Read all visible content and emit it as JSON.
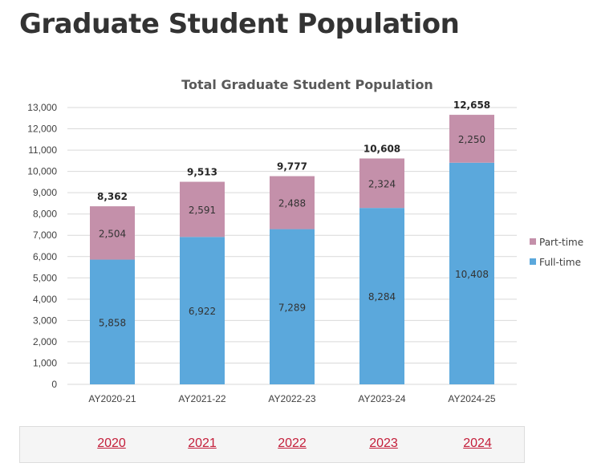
{
  "page": {
    "title": "Graduate Student Population"
  },
  "colors": {
    "full_time": "#5ba8dc",
    "part_time": "#c490aa",
    "grid": "#d9d9d9",
    "link": "#c41e3a"
  },
  "chart_data": {
    "type": "bar",
    "stacked": true,
    "title": "Total Graduate Student Population",
    "xlabel": "",
    "ylabel": "",
    "categories": [
      "AY2020-21",
      "AY2021-22",
      "AY2022-23",
      "AY2023-24",
      "AY2024-25"
    ],
    "series": [
      {
        "name": "Full-time",
        "values": [
          5858,
          6922,
          7289,
          8284,
          10408
        ]
      },
      {
        "name": "Part-time",
        "values": [
          2504,
          2591,
          2488,
          2324,
          2250
        ]
      }
    ],
    "totals": [
      8362,
      9513,
      9777,
      10608,
      12658
    ],
    "value_labels": {
      "full_time": [
        "5,858",
        "6,922",
        "7,289",
        "8,284",
        "10,408"
      ],
      "part_time": [
        "2,504",
        "2,591",
        "2,488",
        "2,324",
        "2,250"
      ],
      "totals": [
        "8,362",
        "9,513",
        "9,777",
        "10,608",
        "12,658"
      ]
    },
    "ylim": [
      0,
      13000
    ],
    "yticks": [
      0,
      1000,
      2000,
      3000,
      4000,
      5000,
      6000,
      7000,
      8000,
      9000,
      10000,
      11000,
      12000,
      13000
    ],
    "ytick_labels": [
      "0",
      "1,000",
      "2,000",
      "3,000",
      "4,000",
      "5,000",
      "6,000",
      "7,000",
      "8,000",
      "9,000",
      "10,000",
      "11,000",
      "12,000",
      "13,000"
    ],
    "grid": true,
    "legend": {
      "position": "right",
      "entries": [
        "Part-time",
        "Full-time"
      ]
    }
  },
  "year_tabs": [
    {
      "label": "2020"
    },
    {
      "label": "2021"
    },
    {
      "label": "2022"
    },
    {
      "label": "2023"
    },
    {
      "label": "2024"
    }
  ]
}
